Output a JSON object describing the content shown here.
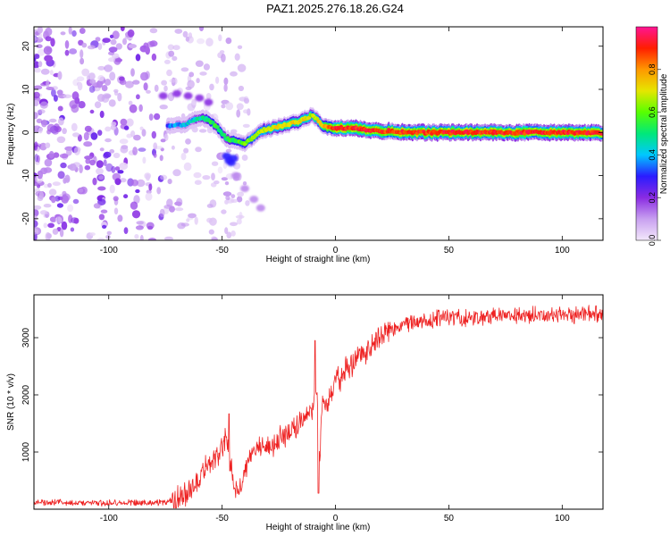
{
  "title": "PAZ1.2025.276.18.26.G24",
  "chart_data": [
    {
      "type": "heatmap",
      "xlabel": "Height of straight line (km)",
      "ylabel": "Frequency (Hz)",
      "xlim": [
        -133,
        118
      ],
      "ylim": [
        -25,
        24.5
      ],
      "xticks": [
        -100,
        -50,
        0,
        50,
        100
      ],
      "yticks": [
        20,
        10,
        0,
        -10,
        -20
      ],
      "colorbar": {
        "label": "Normalized spectral amplitude",
        "range": [
          0,
          1
        ],
        "ticks": [
          "0.0",
          "0.2",
          "0.4",
          "0.6",
          "0.8"
        ],
        "tick_values": [
          0,
          0.2,
          0.4,
          0.6,
          0.8
        ],
        "colors": [
          "#f3e8fb",
          "#c8a0f0",
          "#8a2be2",
          "#2a1cff",
          "#00c8ff",
          "#00e87a",
          "#57ff00",
          "#e6e600",
          "#ff9800",
          "#ff1e00",
          "#ff1493"
        ]
      },
      "ridge": {
        "x": [
          -74,
          -66,
          -60,
          -56,
          -52,
          -48,
          -44,
          -40,
          -36,
          -32,
          -28,
          -24,
          -20,
          -16,
          -12,
          -10,
          -8,
          -6,
          -4,
          -2,
          0,
          5,
          10,
          15,
          20,
          25,
          30,
          40,
          50,
          60,
          70,
          80,
          90,
          100,
          110,
          118
        ],
        "y": [
          1.5,
          2.0,
          3.5,
          3.0,
          1.0,
          -1.5,
          -2.0,
          -2.5,
          -1.0,
          0.5,
          1.0,
          1.5,
          2.0,
          2.5,
          3.5,
          4.0,
          3.0,
          1.5,
          1.2,
          1.0,
          1.0,
          1.0,
          1.0,
          0.5,
          0.2,
          0.5,
          0.0,
          0.0,
          0.0,
          0.0,
          0.0,
          0.0,
          0.0,
          0.0,
          0.0,
          0.0
        ],
        "amplitude": [
          0.35,
          0.4,
          0.45,
          0.5,
          0.55,
          0.5,
          0.55,
          0.6,
          0.62,
          0.65,
          0.68,
          0.7,
          0.72,
          0.72,
          0.7,
          0.65,
          0.7,
          0.75,
          0.8,
          0.85,
          0.9,
          0.9,
          0.9,
          0.9,
          0.9,
          0.88,
          0.9,
          0.9,
          0.9,
          0.9,
          0.9,
          0.9,
          0.9,
          0.9,
          0.9,
          0.9
        ]
      },
      "secondary_features": [
        {
          "x": [
            -76,
            -70,
            -65,
            -60,
            -56
          ],
          "y": [
            8.5,
            9.0,
            8.5,
            8.0,
            7.0
          ],
          "amplitude": 0.2
        },
        {
          "x": [
            -48,
            -47,
            -46,
            -45
          ],
          "y": [
            -5.5,
            -6.5,
            -7.0,
            -6.0
          ],
          "amplitude": 0.3
        },
        {
          "x": [
            -44,
            -40,
            -36,
            -33
          ],
          "y": [
            -10.0,
            -13.0,
            -15.5,
            -17.5
          ],
          "amplitude": 0.12
        }
      ]
    },
    {
      "type": "line",
      "xlabel": "Height of straight line (km)",
      "ylabel": "SNR (10 * v/v)",
      "xlim": [
        -133,
        118
      ],
      "ylim": [
        0,
        3750
      ],
      "xticks": [
        -100,
        -50,
        0,
        50,
        100
      ],
      "yticks": [
        1000,
        2000,
        3000
      ],
      "color": "#ee2222",
      "series": [
        {
          "name": "SNR",
          "x": [
            -133,
            -120,
            -110,
            -100,
            -90,
            -80,
            -75,
            -70,
            -66,
            -62,
            -58,
            -55,
            -50,
            -48,
            -46,
            -44,
            -42,
            -40,
            -36,
            -32,
            -28,
            -24,
            -20,
            -16,
            -12,
            -10,
            -8,
            -7,
            -6,
            -4,
            -2,
            0,
            5,
            10,
            15,
            20,
            25,
            30,
            35,
            40,
            50,
            60,
            70,
            80,
            90,
            100,
            110,
            118
          ],
          "y": [
            120,
            120,
            110,
            110,
            115,
            115,
            130,
            160,
            300,
            450,
            650,
            800,
            1050,
            1300,
            700,
            300,
            350,
            700,
            1100,
            1050,
            1100,
            1250,
            1350,
            1500,
            1650,
            1800,
            2000,
            800,
            1800,
            1900,
            2050,
            2200,
            2450,
            2650,
            2850,
            3050,
            3150,
            3200,
            3250,
            3300,
            3350,
            3350,
            3350,
            3380,
            3400,
            3400,
            3420,
            3430
          ]
        }
      ],
      "peaks": {
        "x": [
          -47,
          -9,
          -7.5
        ],
        "y": [
          1670,
          2950,
          280
        ]
      }
    }
  ]
}
